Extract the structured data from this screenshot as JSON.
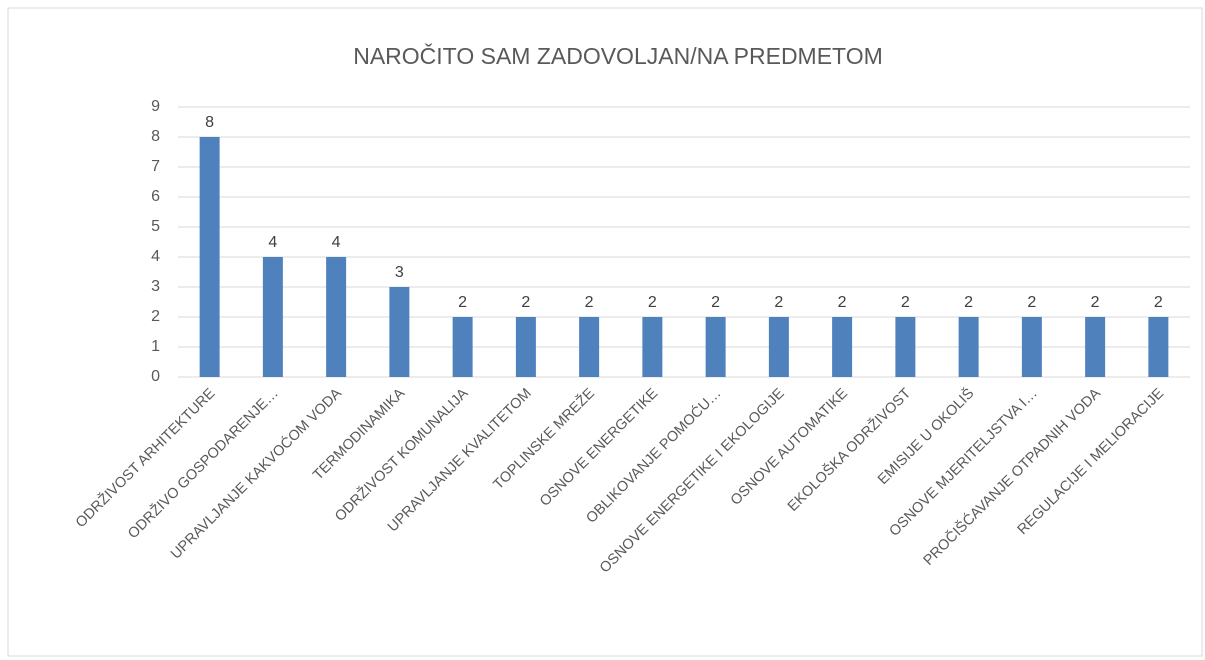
{
  "chart_data": {
    "type": "bar",
    "title": "NAROČITO SAM ZADOVOLJAN/NA PREDMETOM",
    "categories": [
      "ODRŽIVOST ARHITEKTURE",
      "ODRŽIVO GOSPODARENJE…",
      "UPRAVLJANJE KAKVOĆOM VODA",
      "TERMODINAMIKA",
      "ODRŽIVOST KOMUNALIJA",
      "UPRAVLJANJE KVALITETOM",
      "TOPLINSKE MREŽE",
      "OSNOVE ENERGETIKE",
      "OBLIKOVANJE POMOĆU…",
      "OSNOVE ENERGETIKE I EKOLOGIJE",
      "OSNOVE AUTOMATIKE",
      "EKOLOŠKA ODRŽIVOST",
      "EMISIJE U OKOLIŠ",
      "OSNOVE MJERITELJSTVA I…",
      "PROČIŠĆAVANJE OTPADNIH VODA",
      "REGULACIJE I MELIORACIJE"
    ],
    "values": [
      8,
      4,
      4,
      3,
      2,
      2,
      2,
      2,
      2,
      2,
      2,
      2,
      2,
      2,
      2,
      2
    ],
    "color": "#4f81bd",
    "ylim": [
      0,
      9
    ],
    "yticks": [
      0,
      1,
      2,
      3,
      4,
      5,
      6,
      7,
      8,
      9
    ],
    "grid": true
  }
}
